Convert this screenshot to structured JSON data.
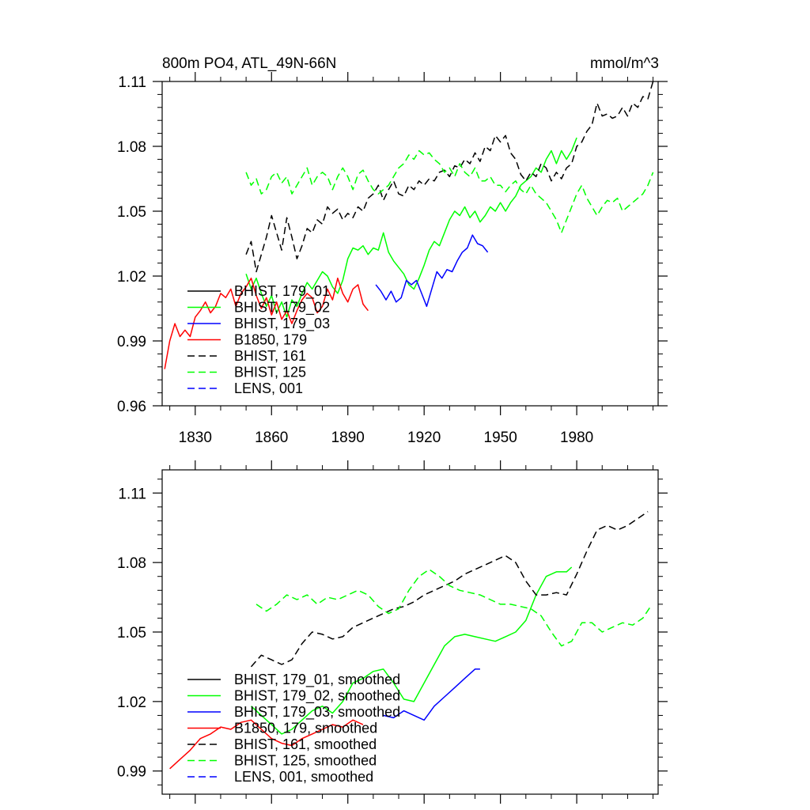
{
  "chart_data": [
    {
      "type": "line",
      "title": "800m PO4, ATL_49N-66N",
      "units_label": "mmol/m^3",
      "xlim": [
        1817,
        2012
      ],
      "ylim": [
        0.96,
        1.11
      ],
      "x_ticks": [
        1830,
        1860,
        1890,
        1920,
        1950,
        1980
      ],
      "x_tick_labels": [
        "1830",
        "1860",
        "1890",
        "1920",
        "1950",
        "1980"
      ],
      "y_ticks": [
        0.96,
        0.99,
        1.02,
        1.05,
        1.08,
        1.11
      ],
      "y_tick_labels": [
        "0.96",
        "0.99",
        "1.02",
        "1.05",
        "1.08",
        "1.11"
      ],
      "grid": false,
      "legend_position": "lower-left",
      "series": [
        {
          "name": "BHIST, 179_01",
          "color": "#000000",
          "dash": "solid",
          "x": [],
          "y": []
        },
        {
          "name": "BHIST, 179_02",
          "color": "#00ff00",
          "dash": "solid",
          "x": [
            1850,
            1852,
            1854,
            1856,
            1858,
            1860,
            1862,
            1864,
            1866,
            1868,
            1870,
            1872,
            1874,
            1876,
            1878,
            1880,
            1882,
            1884,
            1886,
            1888,
            1890,
            1892,
            1894,
            1896,
            1898,
            1900,
            1902,
            1904,
            1906,
            1908,
            1910,
            1912,
            1914,
            1916,
            1918,
            1920,
            1922,
            1924,
            1926,
            1928,
            1930,
            1932,
            1934,
            1936,
            1938,
            1940,
            1942,
            1944,
            1946,
            1948,
            1950,
            1952,
            1954,
            1956,
            1958,
            1960,
            1962,
            1964,
            1966,
            1968,
            1970,
            1972,
            1974,
            1976,
            1978,
            1980
          ],
          "y": [
            1.021,
            1.014,
            1.019,
            1.012,
            1.006,
            1.011,
            1.003,
            1.008,
            1.001,
            1.009,
            1.006,
            1.012,
            1.017,
            1.014,
            1.018,
            1.022,
            1.02,
            1.015,
            1.012,
            1.018,
            1.028,
            1.033,
            1.032,
            1.034,
            1.03,
            1.033,
            1.032,
            1.04,
            1.031,
            1.027,
            1.024,
            1.021,
            1.016,
            1.014,
            1.019,
            1.025,
            1.032,
            1.036,
            1.034,
            1.04,
            1.046,
            1.05,
            1.048,
            1.052,
            1.047,
            1.05,
            1.045,
            1.048,
            1.052,
            1.05,
            1.054,
            1.05,
            1.054,
            1.057,
            1.062,
            1.064,
            1.066,
            1.07,
            1.068,
            1.074,
            1.078,
            1.072,
            1.078,
            1.074,
            1.078,
            1.084
          ]
        },
        {
          "name": "BHIST, 179_03",
          "color": "#0000ff",
          "dash": "solid",
          "x": [
            1901,
            1903,
            1905,
            1907,
            1909,
            1911,
            1913,
            1915,
            1917,
            1919,
            1921,
            1923,
            1925,
            1927,
            1929,
            1931,
            1933,
            1935,
            1937,
            1939,
            1941,
            1943,
            1945
          ],
          "y": [
            1.016,
            1.013,
            1.009,
            1.013,
            1.008,
            1.01,
            1.018,
            1.016,
            1.018,
            1.012,
            1.006,
            1.014,
            1.022,
            1.019,
            1.023,
            1.022,
            1.027,
            1.031,
            1.033,
            1.039,
            1.035,
            1.034,
            1.031
          ]
        },
        {
          "name": "B1850, 179",
          "color": "#ff0000",
          "dash": "solid",
          "x": [
            1818,
            1820,
            1822,
            1824,
            1826,
            1828,
            1830,
            1832,
            1834,
            1836,
            1838,
            1840,
            1842,
            1844,
            1846,
            1848,
            1850,
            1852,
            1854,
            1856,
            1858,
            1860,
            1862,
            1864,
            1866,
            1868,
            1870,
            1872,
            1874,
            1876,
            1878,
            1880,
            1882,
            1884,
            1886,
            1888,
            1890,
            1892,
            1894,
            1896,
            1898
          ],
          "y": [
            0.977,
            0.99,
            0.998,
            0.992,
            0.995,
            0.992,
            1.001,
            1.004,
            1.008,
            1.003,
            1.006,
            1.012,
            1.01,
            1.014,
            1.006,
            1.012,
            1.015,
            1.019,
            1.011,
            1.005,
            1.01,
            1.002,
            1.008,
            1.0,
            1.004,
            0.998,
            1.004,
            1.009,
            1.012,
            1.01,
            1.003,
            1.006,
            1.014,
            1.009,
            1.019,
            1.012,
            1.008,
            1.014,
            1.016,
            1.007,
            1.004
          ]
        },
        {
          "name": "BHIST, 161",
          "color": "#000000",
          "dash": "dashed",
          "x": [
            1850,
            1852,
            1854,
            1856,
            1858,
            1860,
            1862,
            1864,
            1866,
            1868,
            1870,
            1872,
            1874,
            1876,
            1878,
            1880,
            1882,
            1884,
            1886,
            1888,
            1890,
            1892,
            1894,
            1896,
            1898,
            1900,
            1902,
            1904,
            1906,
            1908,
            1910,
            1912,
            1914,
            1916,
            1918,
            1920,
            1922,
            1924,
            1926,
            1928,
            1930,
            1932,
            1934,
            1936,
            1938,
            1940,
            1942,
            1944,
            1946,
            1948,
            1950,
            1952,
            1954,
            1956,
            1958,
            1960,
            1962,
            1964,
            1966,
            1968,
            1970,
            1972,
            1974,
            1976,
            1978,
            1980,
            1982,
            1984,
            1986,
            1988,
            1990,
            1992,
            1994,
            1996,
            1998,
            2000,
            2002,
            2004,
            2006,
            2008,
            2010
          ],
          "y": [
            1.03,
            1.036,
            1.022,
            1.03,
            1.038,
            1.048,
            1.04,
            1.032,
            1.047,
            1.038,
            1.028,
            1.034,
            1.042,
            1.04,
            1.046,
            1.044,
            1.052,
            1.049,
            1.051,
            1.046,
            1.049,
            1.047,
            1.052,
            1.05,
            1.056,
            1.058,
            1.062,
            1.055,
            1.06,
            1.064,
            1.058,
            1.057,
            1.062,
            1.06,
            1.064,
            1.062,
            1.065,
            1.064,
            1.068,
            1.069,
            1.066,
            1.071,
            1.07,
            1.074,
            1.072,
            1.077,
            1.073,
            1.08,
            1.078,
            1.085,
            1.082,
            1.085,
            1.077,
            1.074,
            1.067,
            1.064,
            1.068,
            1.066,
            1.072,
            1.07,
            1.064,
            1.068,
            1.065,
            1.07,
            1.072,
            1.08,
            1.082,
            1.087,
            1.09,
            1.1,
            1.094,
            1.095,
            1.093,
            1.094,
            1.098,
            1.094,
            1.1,
            1.098,
            1.103,
            1.102,
            1.11
          ]
        },
        {
          "name": "BHIST, 125",
          "color": "#00ff00",
          "dash": "dashed",
          "x": [
            1850,
            1852,
            1854,
            1856,
            1858,
            1860,
            1862,
            1864,
            1866,
            1868,
            1870,
            1872,
            1874,
            1876,
            1878,
            1880,
            1882,
            1884,
            1886,
            1888,
            1890,
            1892,
            1894,
            1896,
            1898,
            1900,
            1902,
            1904,
            1906,
            1908,
            1910,
            1912,
            1914,
            1916,
            1918,
            1920,
            1922,
            1924,
            1926,
            1928,
            1930,
            1932,
            1934,
            1936,
            1938,
            1940,
            1942,
            1944,
            1946,
            1948,
            1950,
            1952,
            1954,
            1956,
            1958,
            1960,
            1962,
            1964,
            1966,
            1968,
            1970,
            1972,
            1974,
            1976,
            1978,
            1980,
            1982,
            1984,
            1986,
            1988,
            1990,
            1992,
            1994,
            1996,
            1998,
            2000,
            2002,
            2004,
            2006,
            2008,
            2010
          ],
          "y": [
            1.068,
            1.062,
            1.065,
            1.058,
            1.06,
            1.066,
            1.068,
            1.063,
            1.066,
            1.058,
            1.062,
            1.066,
            1.07,
            1.062,
            1.066,
            1.068,
            1.066,
            1.06,
            1.066,
            1.07,
            1.066,
            1.06,
            1.067,
            1.069,
            1.064,
            1.06,
            1.058,
            1.06,
            1.062,
            1.066,
            1.07,
            1.072,
            1.076,
            1.074,
            1.078,
            1.076,
            1.077,
            1.074,
            1.072,
            1.068,
            1.07,
            1.066,
            1.072,
            1.068,
            1.066,
            1.07,
            1.064,
            1.064,
            1.066,
            1.062,
            1.062,
            1.059,
            1.062,
            1.064,
            1.06,
            1.058,
            1.062,
            1.058,
            1.056,
            1.054,
            1.05,
            1.046,
            1.04,
            1.046,
            1.052,
            1.058,
            1.062,
            1.056,
            1.052,
            1.048,
            1.052,
            1.055,
            1.054,
            1.056,
            1.05,
            1.052,
            1.054,
            1.056,
            1.058,
            1.062,
            1.068
          ]
        },
        {
          "name": "LENS, 001",
          "color": "#0000ff",
          "dash": "dashed",
          "x": [],
          "y": []
        }
      ]
    },
    {
      "type": "line",
      "xlim": [
        1817,
        2012
      ],
      "ylim": [
        0.98,
        1.12
      ],
      "x_ticks": [
        1830,
        1860,
        1890,
        1920,
        1950,
        1980
      ],
      "y_ticks": [
        0.99,
        1.02,
        1.05,
        1.08,
        1.11
      ],
      "y_tick_labels": [
        "0.99",
        "1.02",
        "1.05",
        "1.08",
        "1.11"
      ],
      "grid": false,
      "legend_position": "lower-left",
      "series": [
        {
          "name": "BHIST, 179_01, smoothed",
          "color": "#000000",
          "dash": "solid",
          "x": [],
          "y": []
        },
        {
          "name": "BHIST, 179_02, smoothed",
          "color": "#00ff00",
          "dash": "solid",
          "x": [
            1852,
            1856,
            1860,
            1864,
            1868,
            1872,
            1876,
            1880,
            1884,
            1888,
            1892,
            1896,
            1900,
            1904,
            1908,
            1912,
            1916,
            1920,
            1924,
            1928,
            1932,
            1936,
            1940,
            1944,
            1948,
            1952,
            1956,
            1960,
            1964,
            1968,
            1972,
            1976,
            1978
          ],
          "y": [
            1.018,
            1.014,
            1.01,
            1.006,
            1.008,
            1.012,
            1.016,
            1.018,
            1.015,
            1.02,
            1.028,
            1.03,
            1.033,
            1.034,
            1.028,
            1.021,
            1.02,
            1.028,
            1.036,
            1.044,
            1.048,
            1.049,
            1.048,
            1.047,
            1.046,
            1.048,
            1.05,
            1.055,
            1.066,
            1.074,
            1.076,
            1.076,
            1.078
          ]
        },
        {
          "name": "BHIST, 179_03, smoothed",
          "color": "#0000ff",
          "dash": "solid",
          "x": [
            1904,
            1908,
            1912,
            1916,
            1920,
            1924,
            1928,
            1932,
            1936,
            1940,
            1942
          ],
          "y": [
            1.014,
            1.013,
            1.016,
            1.014,
            1.012,
            1.018,
            1.022,
            1.026,
            1.03,
            1.034,
            1.034
          ]
        },
        {
          "name": "B1850, 179, smoothed",
          "color": "#ff0000",
          "dash": "solid",
          "x": [
            1820,
            1824,
            1828,
            1832,
            1836,
            1840,
            1844,
            1848,
            1852,
            1856,
            1860,
            1864,
            1868,
            1872,
            1876,
            1880,
            1884,
            1888,
            1892,
            1896
          ],
          "y": [
            0.991,
            0.995,
            0.999,
            1.004,
            1.006,
            1.009,
            1.008,
            1.011,
            1.012,
            1.008,
            1.004,
            1.002,
            1.001,
            1.004,
            1.006,
            1.008,
            1.01,
            1.009,
            1.012,
            1.01
          ]
        },
        {
          "name": "BHIST, 161, smoothed",
          "color": "#000000",
          "dash": "dashed",
          "x": [
            1852,
            1856,
            1860,
            1864,
            1868,
            1872,
            1876,
            1880,
            1884,
            1888,
            1892,
            1896,
            1900,
            1904,
            1908,
            1912,
            1916,
            1920,
            1924,
            1928,
            1932,
            1936,
            1940,
            1944,
            1948,
            1952,
            1956,
            1960,
            1964,
            1968,
            1972,
            1976,
            1980,
            1984,
            1988,
            1992,
            1996,
            2000,
            2004,
            2008
          ],
          "y": [
            1.035,
            1.04,
            1.038,
            1.036,
            1.038,
            1.045,
            1.05,
            1.049,
            1.047,
            1.048,
            1.052,
            1.054,
            1.056,
            1.058,
            1.06,
            1.061,
            1.063,
            1.066,
            1.068,
            1.07,
            1.072,
            1.075,
            1.077,
            1.079,
            1.081,
            1.083,
            1.08,
            1.072,
            1.066,
            1.066,
            1.067,
            1.066,
            1.075,
            1.085,
            1.094,
            1.096,
            1.094,
            1.096,
            1.099,
            1.102
          ]
        },
        {
          "name": "BHIST, 125, smoothed",
          "color": "#00ff00",
          "dash": "dashed",
          "x": [
            1854,
            1858,
            1862,
            1866,
            1870,
            1874,
            1878,
            1882,
            1886,
            1890,
            1894,
            1898,
            1902,
            1906,
            1910,
            1914,
            1918,
            1922,
            1926,
            1930,
            1934,
            1938,
            1942,
            1946,
            1950,
            1954,
            1958,
            1962,
            1966,
            1970,
            1974,
            1978,
            1982,
            1986,
            1990,
            1994,
            1998,
            2002,
            2006,
            2009
          ],
          "y": [
            1.062,
            1.059,
            1.062,
            1.066,
            1.064,
            1.066,
            1.062,
            1.065,
            1.064,
            1.066,
            1.068,
            1.066,
            1.061,
            1.058,
            1.06,
            1.068,
            1.074,
            1.077,
            1.074,
            1.07,
            1.068,
            1.067,
            1.066,
            1.064,
            1.062,
            1.062,
            1.061,
            1.06,
            1.057,
            1.05,
            1.044,
            1.046,
            1.054,
            1.054,
            1.05,
            1.052,
            1.054,
            1.053,
            1.056,
            1.061
          ]
        },
        {
          "name": "LENS, 001, smoothed",
          "color": "#0000ff",
          "dash": "dashed",
          "x": [],
          "y": []
        }
      ]
    }
  ]
}
